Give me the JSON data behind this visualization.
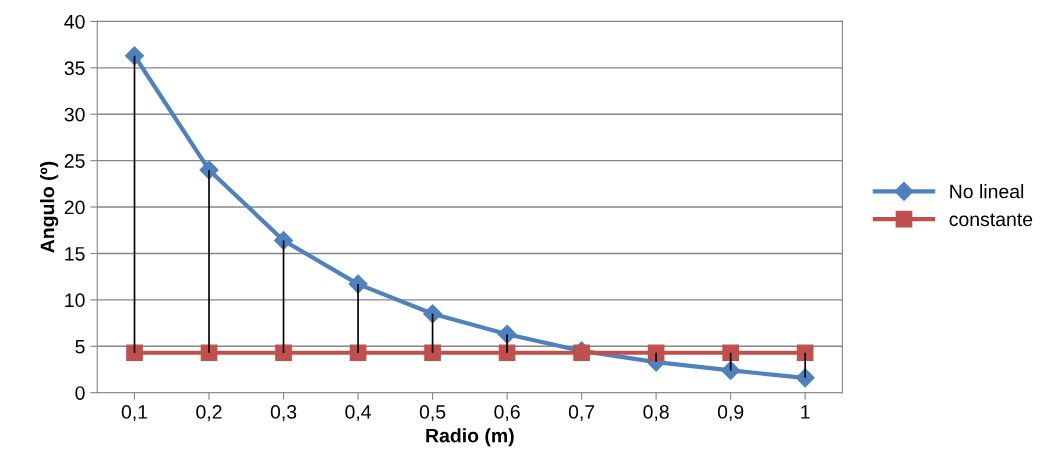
{
  "chart_data": {
    "type": "line",
    "xlabel": "Radio (m)",
    "ylabel": "Angulo (º)",
    "categories": [
      "0,1",
      "0,2",
      "0,3",
      "0,4",
      "0,5",
      "0,6",
      "0,7",
      "0,8",
      "0,9",
      "1"
    ],
    "series": [
      {
        "name": "No lineal",
        "color": "#4f81bd",
        "marker": "diamond",
        "values": [
          36.3,
          24.0,
          16.4,
          11.7,
          8.5,
          6.3,
          4.5,
          3.3,
          2.4,
          1.6
        ],
        "errors": [
          [
            4.3,
            36.3
          ],
          [
            4.3,
            24.0
          ],
          [
            4.3,
            16.4
          ],
          [
            4.3,
            11.7
          ],
          [
            4.3,
            8.5
          ],
          [
            4.3,
            6.3
          ],
          null,
          [
            3.3,
            4.3
          ],
          [
            2.4,
            4.3
          ],
          [
            1.6,
            4.3
          ]
        ]
      },
      {
        "name": "constante",
        "color": "#c0504d",
        "marker": "square",
        "values": [
          4.3,
          4.3,
          4.3,
          4.3,
          4.3,
          4.3,
          4.3,
          4.3,
          4.3,
          4.3
        ]
      }
    ],
    "ylim": [
      0,
      40
    ],
    "yticks": [
      0,
      5,
      10,
      15,
      20,
      25,
      30,
      35,
      40
    ],
    "grid": "y",
    "legend": "right",
    "line_style": "solid"
  }
}
